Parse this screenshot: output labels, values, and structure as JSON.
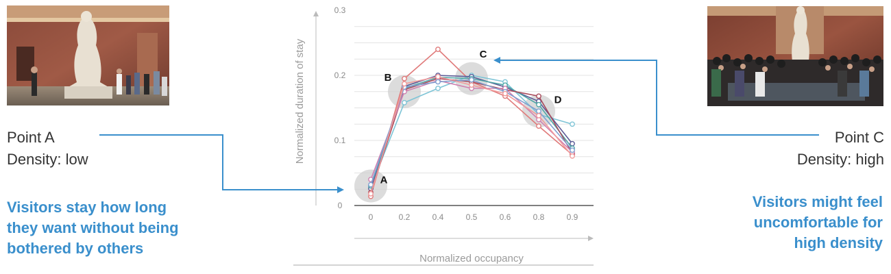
{
  "left_panel": {
    "point_label": "Point A",
    "density_label": "Density: low",
    "takeaway": [
      "Visitors stay how long",
      "they want without being",
      "bothered by others"
    ]
  },
  "right_panel": {
    "point_label": "Point C",
    "density_label": "Density: high",
    "takeaway": [
      "Visitors might feel",
      "uncomfortable for",
      "high density"
    ]
  },
  "colors": {
    "accent": "#3a8fcc",
    "text": "#333333",
    "highlight": "#d0d0d0"
  },
  "chart_data": {
    "type": "line",
    "xlabel": "Normalized occupancy",
    "ylabel": "Normalized duration of stay",
    "categories": [
      "0",
      "0.2",
      "0.4",
      "0.5",
      "0.6",
      "0.8",
      "0.9"
    ],
    "ylim": [
      0,
      0.3
    ],
    "yticks": [
      "0",
      "0.1",
      "0.2",
      "0.3"
    ],
    "grid": true,
    "series": [
      {
        "color": "#e07a7a",
        "values": [
          0.014,
          0.195,
          0.24,
          0.19,
          0.168,
          0.122,
          0.078
        ]
      },
      {
        "color": "#7ec4d6",
        "values": [
          0.028,
          0.158,
          0.18,
          0.2,
          0.19,
          0.14,
          0.125
        ]
      },
      {
        "color": "#5a5a96",
        "values": [
          0.026,
          0.183,
          0.2,
          0.198,
          0.182,
          0.16,
          0.095
        ]
      },
      {
        "color": "#4fa6a6",
        "values": [
          0.03,
          0.18,
          0.197,
          0.195,
          0.185,
          0.155,
          0.088
        ]
      },
      {
        "color": "#a94a5a",
        "values": [
          0.02,
          0.178,
          0.195,
          0.19,
          0.178,
          0.168,
          0.08
        ]
      },
      {
        "color": "#d080b0",
        "values": [
          0.04,
          0.175,
          0.192,
          0.18,
          0.18,
          0.132,
          0.082
        ]
      },
      {
        "color": "#7f9fd0",
        "values": [
          0.032,
          0.182,
          0.19,
          0.193,
          0.175,
          0.145,
          0.085
        ]
      },
      {
        "color": "#f09a9a",
        "values": [
          0.018,
          0.187,
          0.198,
          0.185,
          0.172,
          0.138,
          0.076
        ]
      }
    ],
    "annotations": [
      {
        "text": "A",
        "x_index": 0,
        "y": 0.03
      },
      {
        "text": "B",
        "x_index": 1,
        "y": 0.175
      },
      {
        "text": "C",
        "x_index": 3,
        "y": 0.195
      },
      {
        "text": "D",
        "x_index": 5,
        "y": 0.145
      }
    ]
  }
}
